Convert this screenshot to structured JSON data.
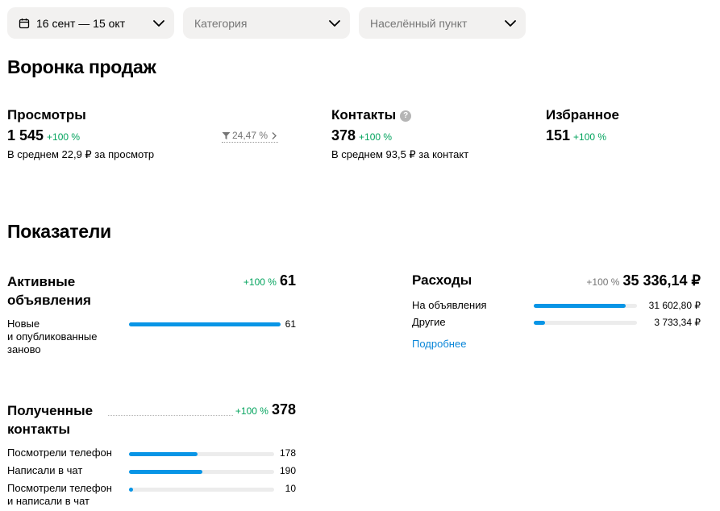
{
  "filters": {
    "date_range": "16 сент — 15 окт",
    "category_placeholder": "Категория",
    "location_placeholder": "Населённый пункт"
  },
  "funnel": {
    "title": "Воронка продаж",
    "views": {
      "label": "Просмотры",
      "value": "1 545",
      "change": "+100 %",
      "conversion": "24,47 %",
      "avg": "В среднем 22,9 ₽ за просмотр"
    },
    "contacts": {
      "label": "Контакты",
      "value": "378",
      "change": "+100 %",
      "avg": "В среднем 93,5 ₽ за контакт"
    },
    "favorites": {
      "label": "Избранное",
      "value": "151",
      "change": "+100 %"
    }
  },
  "metrics": {
    "title": "Показатели",
    "active_ads": {
      "title_line1": "Активные",
      "title_line2": "объявления",
      "change": "+100 %",
      "total": "61",
      "rows": [
        {
          "label_line1": "Новые",
          "label_line2": "и опубликованные",
          "label_line3": "заново",
          "value": "61",
          "fraction": 1.0
        }
      ]
    },
    "expenses": {
      "title": "Расходы",
      "change": "+100 %",
      "total": "35 336,14 ₽",
      "rows": [
        {
          "label": "На объявления",
          "value": "31 602,80 ₽",
          "fraction": 0.894
        },
        {
          "label": "Другие",
          "value": "3 733,34 ₽",
          "fraction": 0.106
        }
      ],
      "more_link": "Подробнее"
    },
    "contacts_received": {
      "title_line1": "Полученные",
      "title_line2": "контакты",
      "change": "+100 %",
      "total": "378",
      "rows": [
        {
          "label_line1": "Посмотрели телефон",
          "label_line2": "",
          "value": "178",
          "fraction": 0.471
        },
        {
          "label_line1": "Написали в чат",
          "label_line2": "",
          "value": "190",
          "fraction": 0.503
        },
        {
          "label_line1": "Посмотрели телефон",
          "label_line2": "и написали в чат",
          "value": "10",
          "fraction": 0.026
        }
      ]
    }
  },
  "colors": {
    "accent_green": "#02a35d",
    "bar_blue": "#0895e6",
    "link_blue": "#0a86d8",
    "pill_bg": "#f2f1f0"
  },
  "icons": {
    "calendar": "calendar-icon",
    "chevron": "chevron-down-icon",
    "help": "help-icon",
    "funnel": "funnel-icon",
    "chevron_right": "chevron-right-icon"
  }
}
